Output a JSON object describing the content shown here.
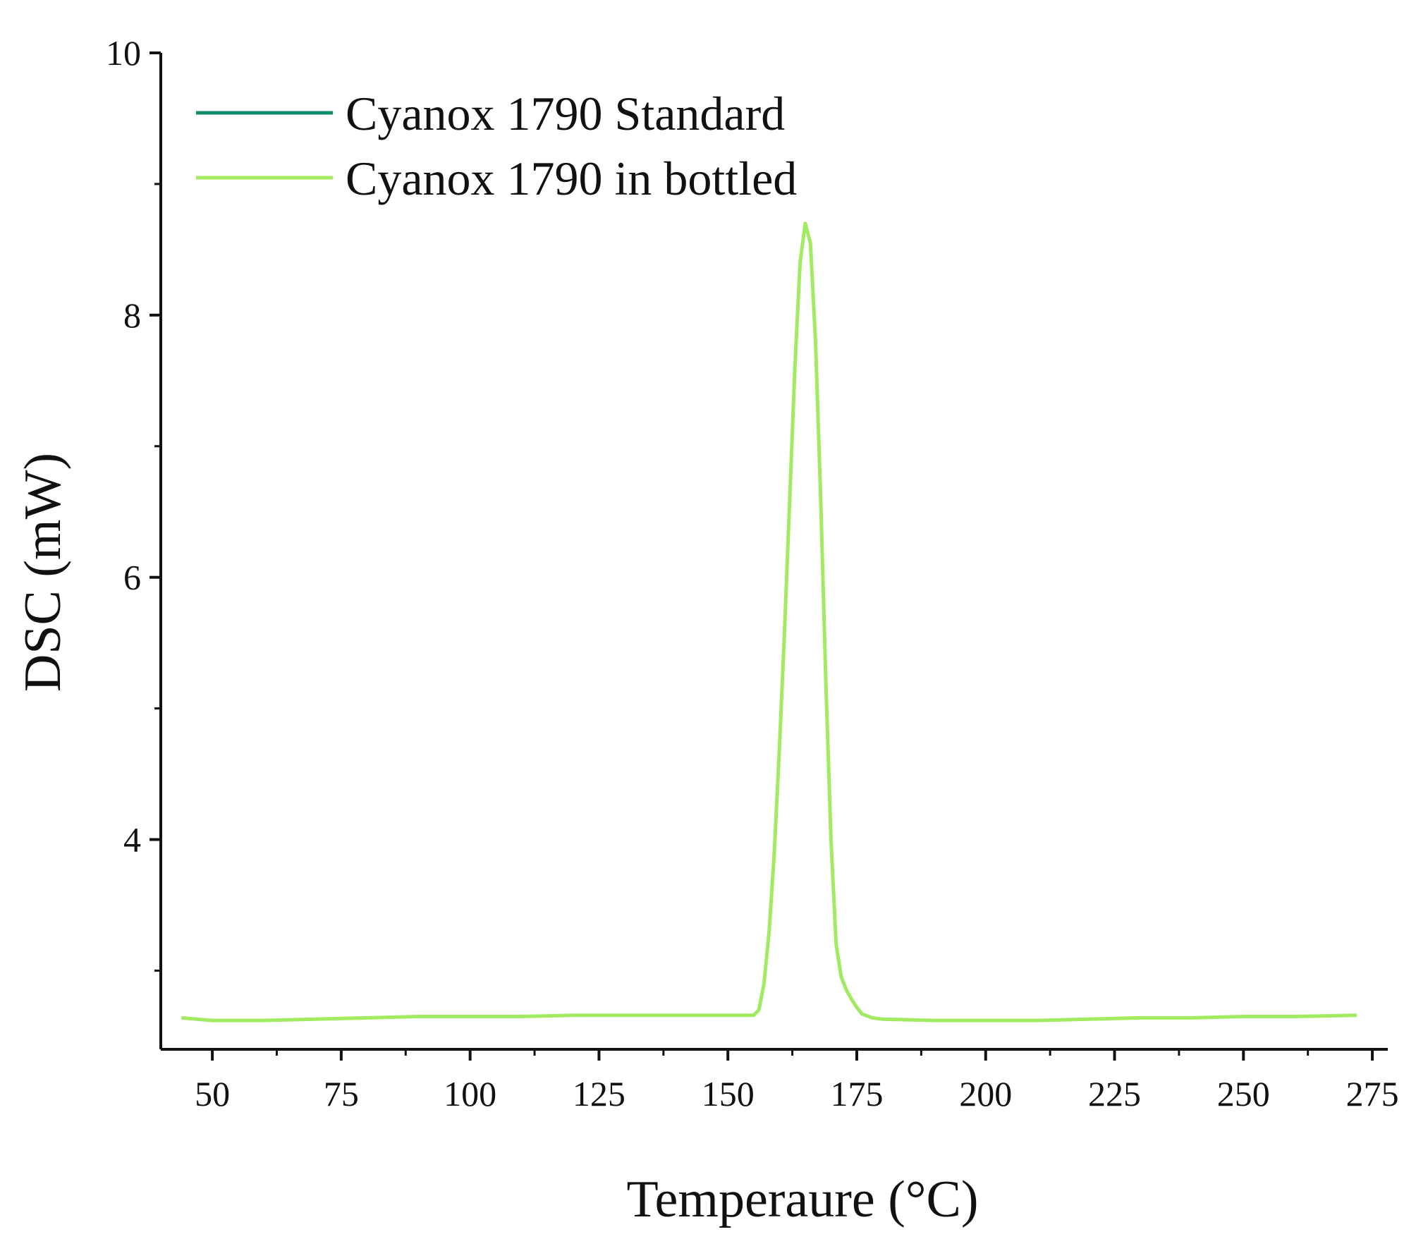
{
  "chart_data": {
    "type": "line",
    "xlabel": "Temperaure (°C)",
    "ylabel": "DSC (mW)",
    "xlim": [
      40,
      278
    ],
    "ylim": [
      2.4,
      10
    ],
    "x_ticks": [
      50,
      75,
      100,
      125,
      150,
      175,
      200,
      225,
      250,
      275
    ],
    "y_ticks": [
      4,
      6,
      8,
      10
    ],
    "y_minor_ticks": [
      3,
      5,
      7,
      9
    ],
    "grid": false,
    "legend_position": "top-left",
    "series": [
      {
        "name": "Cyanox 1790 Standard",
        "color": "#0f8a6a",
        "points": []
      },
      {
        "name": "Cyanox 1790 in bottled",
        "color": "#a3ea63",
        "points": [
          [
            44,
            2.64
          ],
          [
            50,
            2.62
          ],
          [
            60,
            2.62
          ],
          [
            70,
            2.63
          ],
          [
            80,
            2.64
          ],
          [
            90,
            2.65
          ],
          [
            100,
            2.65
          ],
          [
            110,
            2.65
          ],
          [
            120,
            2.66
          ],
          [
            130,
            2.66
          ],
          [
            140,
            2.66
          ],
          [
            150,
            2.66
          ],
          [
            155,
            2.66
          ],
          [
            156,
            2.7
          ],
          [
            157,
            2.9
          ],
          [
            158,
            3.3
          ],
          [
            159,
            3.9
          ],
          [
            160,
            4.7
          ],
          [
            161,
            5.6
          ],
          [
            162,
            6.6
          ],
          [
            163,
            7.6
          ],
          [
            164,
            8.4
          ],
          [
            165,
            8.7
          ],
          [
            166,
            8.55
          ],
          [
            167,
            7.8
          ],
          [
            168,
            6.6
          ],
          [
            169,
            5.2
          ],
          [
            170,
            4.0
          ],
          [
            171,
            3.2
          ],
          [
            172,
            2.95
          ],
          [
            173,
            2.85
          ],
          [
            174,
            2.78
          ],
          [
            175,
            2.72
          ],
          [
            176,
            2.67
          ],
          [
            178,
            2.64
          ],
          [
            180,
            2.63
          ],
          [
            190,
            2.62
          ],
          [
            200,
            2.62
          ],
          [
            210,
            2.62
          ],
          [
            220,
            2.63
          ],
          [
            230,
            2.64
          ],
          [
            240,
            2.64
          ],
          [
            250,
            2.65
          ],
          [
            260,
            2.65
          ],
          [
            272,
            2.66
          ]
        ]
      }
    ]
  }
}
